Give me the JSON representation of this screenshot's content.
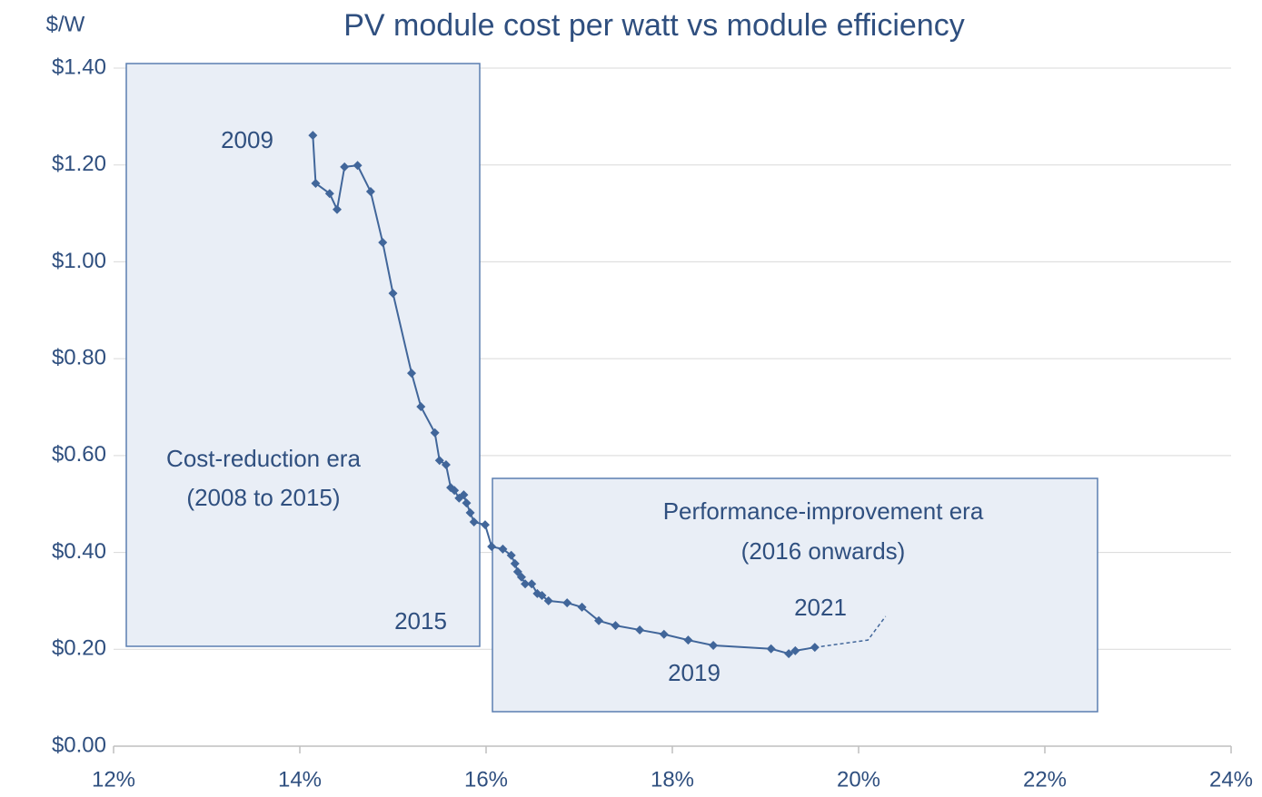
{
  "chart_data": {
    "type": "scatter",
    "title": "PV module cost per watt vs module efficiency",
    "y_label": "$/W",
    "xlim": [
      12,
      24
    ],
    "ylim": [
      0,
      1.4
    ],
    "xticks": [
      {
        "value": 12,
        "label": "12%"
      },
      {
        "value": 14,
        "label": "14%"
      },
      {
        "value": 16,
        "label": "16%"
      },
      {
        "value": 18,
        "label": "18%"
      },
      {
        "value": 20,
        "label": "20%"
      },
      {
        "value": 22,
        "label": "22%"
      },
      {
        "value": 24,
        "label": "24%"
      }
    ],
    "yticks": [
      {
        "value": 0,
        "label": "$0.00"
      },
      {
        "value": 0.2,
        "label": "$0.20"
      },
      {
        "value": 0.4,
        "label": "$0.40"
      },
      {
        "value": 0.6,
        "label": "$0.60"
      },
      {
        "value": 0.8,
        "label": "$0.80"
      },
      {
        "value": 1.0,
        "label": "$1.00"
      },
      {
        "value": 1.2,
        "label": "$1.20"
      },
      {
        "value": 1.4,
        "label": "$1.40"
      }
    ],
    "grid": true,
    "series": [
      {
        "color": "#41669a",
        "markers": true,
        "dashed": false,
        "x": [
          14.14,
          14.17,
          14.32,
          14.4,
          14.48,
          14.62,
          14.76,
          14.89,
          15.0,
          15.2,
          15.3,
          15.45,
          15.5,
          15.57,
          15.62,
          15.66,
          15.71,
          15.76,
          15.79,
          15.83,
          15.87,
          15.99,
          16.06,
          16.18,
          16.27,
          16.31,
          16.34,
          16.38,
          16.42,
          16.49,
          16.55,
          16.6,
          16.67,
          16.87,
          17.03,
          17.21,
          17.39,
          17.65,
          17.91,
          18.17,
          18.44,
          19.06,
          19.25,
          19.32,
          19.53
        ],
        "values": [
          1.261,
          1.162,
          1.141,
          1.108,
          1.196,
          1.199,
          1.145,
          1.04,
          0.935,
          0.77,
          0.701,
          0.647,
          0.59,
          0.581,
          0.534,
          0.528,
          0.512,
          0.519,
          0.502,
          0.482,
          0.463,
          0.457,
          0.412,
          0.407,
          0.394,
          0.377,
          0.36,
          0.349,
          0.335,
          0.335,
          0.315,
          0.311,
          0.3,
          0.296,
          0.287,
          0.259,
          0.249,
          0.24,
          0.231,
          0.219,
          0.208,
          0.201,
          0.191,
          0.197,
          0.204
        ]
      },
      {
        "color": "#41669a",
        "markers": false,
        "dashed": true,
        "x": [
          19.53,
          20.1,
          20.29
        ],
        "values": [
          0.204,
          0.219,
          0.268
        ]
      }
    ],
    "annotations": [
      "2009",
      "2015",
      "2019",
      "2021",
      "Cost-reduction era",
      "(2008 to 2015)",
      "Performance-improvement era",
      "(2016 onwards)"
    ]
  }
}
